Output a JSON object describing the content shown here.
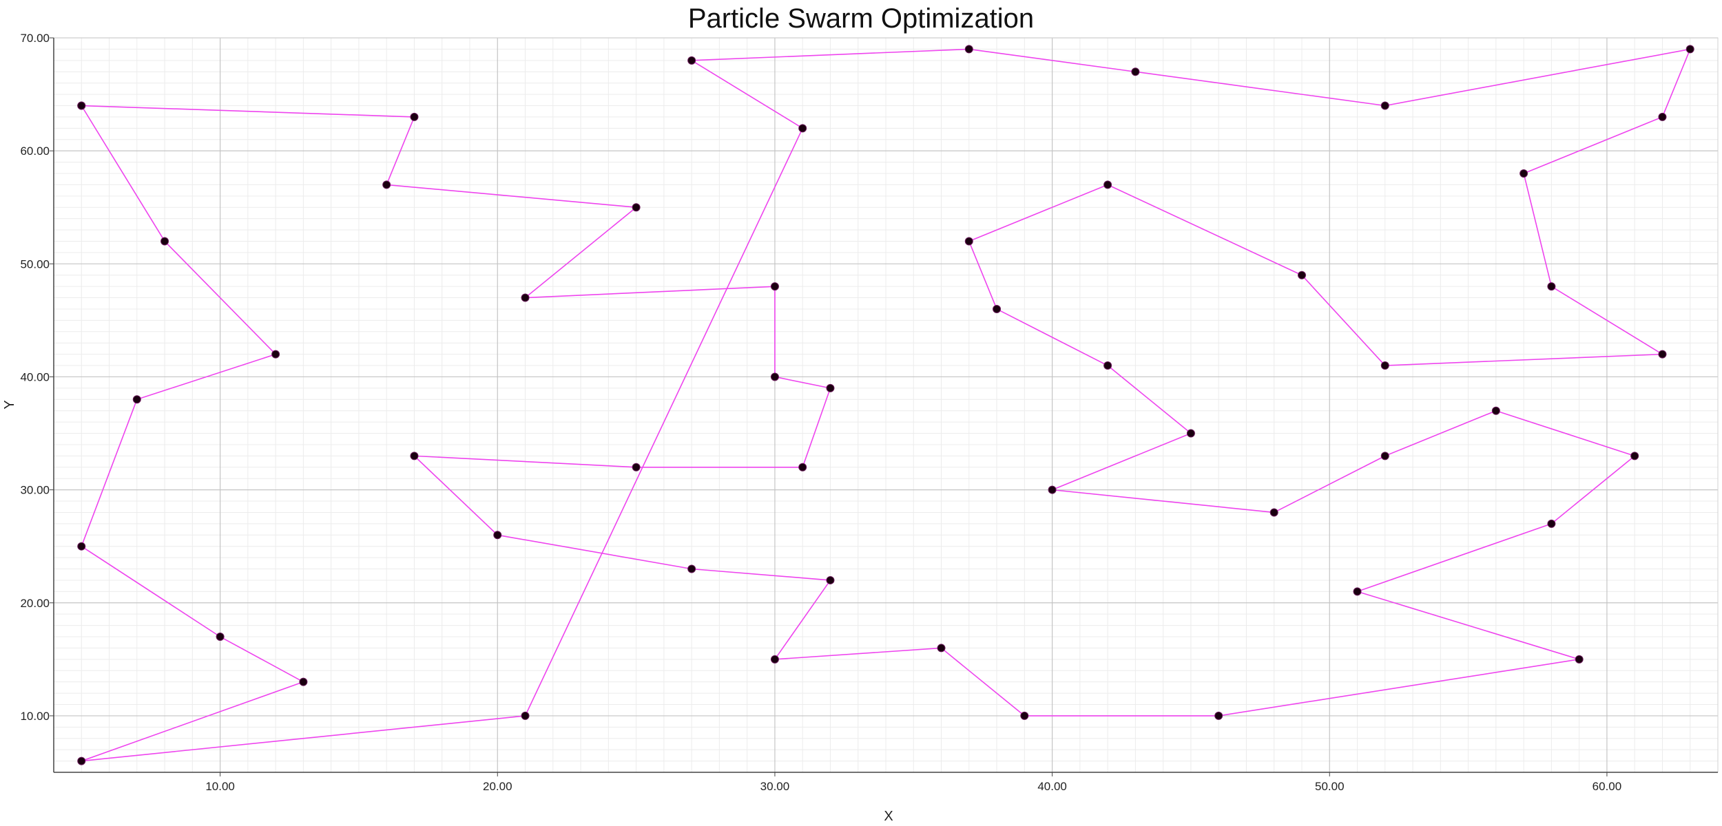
{
  "chart_data": {
    "type": "line",
    "title": "Particle Swarm Optimization",
    "xlabel": "X",
    "ylabel": "Y",
    "xlim": [
      4,
      64
    ],
    "ylim": [
      5,
      70
    ],
    "xticks": [
      "10.00",
      "20.00",
      "30.00",
      "40.00",
      "50.00",
      "60.00"
    ],
    "yticks": [
      "10.00",
      "20.00",
      "30.00",
      "40.00",
      "50.00",
      "60.00",
      "70.00"
    ],
    "grid": true,
    "line_color": "#ee44ee",
    "marker_color": "#1a0010",
    "series": [
      {
        "points": [
          [
            5,
            64
          ],
          [
            17,
            63
          ],
          [
            16,
            57
          ],
          [
            25,
            55
          ],
          [
            21,
            47
          ],
          [
            30,
            48
          ],
          [
            30,
            40
          ],
          [
            32,
            39
          ],
          [
            31,
            32
          ],
          [
            25,
            32
          ],
          [
            17,
            33
          ],
          [
            20,
            26
          ],
          [
            27,
            23
          ],
          [
            32,
            22
          ],
          [
            30,
            15
          ],
          [
            36,
            16
          ],
          [
            39,
            10
          ],
          [
            46,
            10
          ],
          [
            59,
            15
          ],
          [
            51,
            21
          ],
          [
            58,
            27
          ],
          [
            61,
            33
          ],
          [
            56,
            37
          ],
          [
            52,
            33
          ],
          [
            48,
            28
          ],
          [
            40,
            30
          ],
          [
            45,
            35
          ],
          [
            42,
            41
          ],
          [
            38,
            46
          ],
          [
            37,
            52
          ],
          [
            42,
            57
          ],
          [
            49,
            49
          ],
          [
            52,
            41
          ],
          [
            62,
            42
          ],
          [
            58,
            48
          ],
          [
            57,
            58
          ],
          [
            62,
            63
          ],
          [
            63,
            69
          ],
          [
            52,
            64
          ],
          [
            43,
            67
          ],
          [
            37,
            69
          ],
          [
            27,
            68
          ],
          [
            31,
            62
          ],
          [
            21,
            10
          ],
          [
            5,
            6
          ],
          [
            13,
            13
          ],
          [
            10,
            17
          ],
          [
            5,
            25
          ],
          [
            7,
            38
          ],
          [
            12,
            42
          ],
          [
            8,
            52
          ],
          [
            5,
            64
          ]
        ]
      }
    ]
  }
}
